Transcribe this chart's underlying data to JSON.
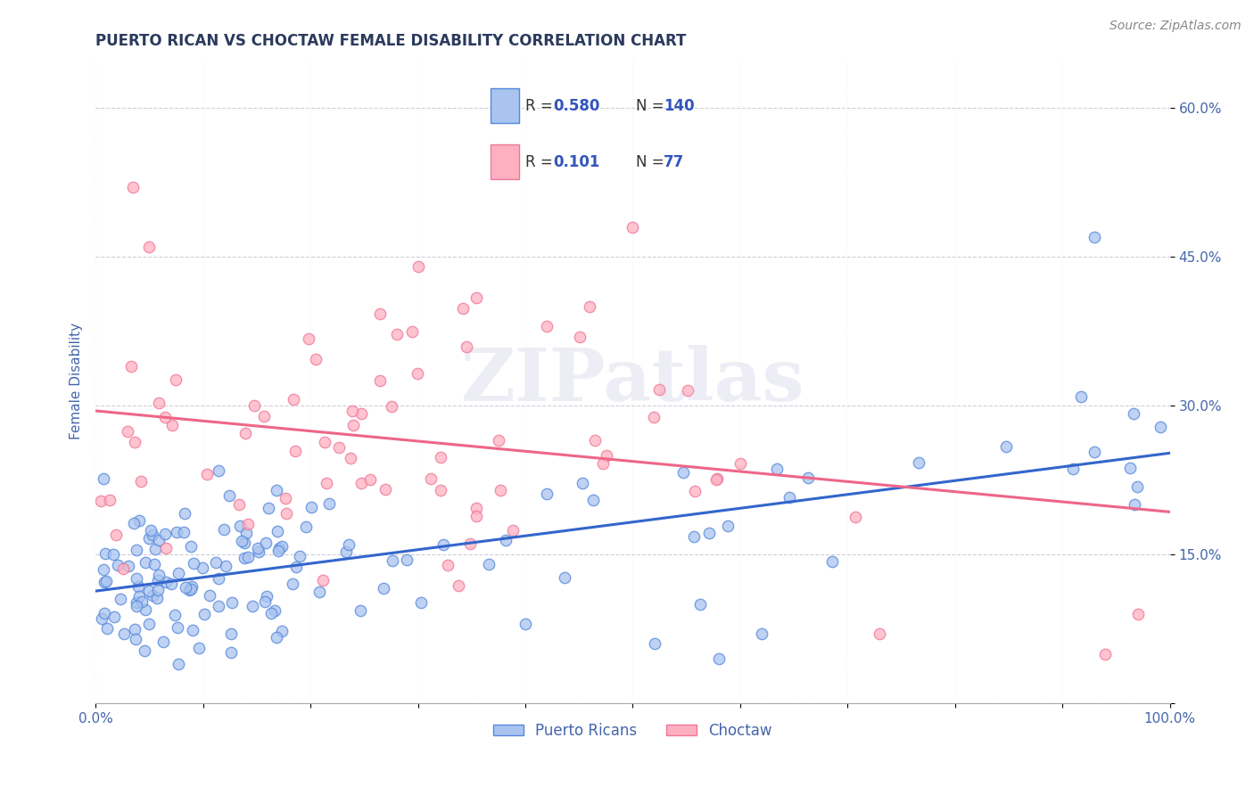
{
  "title": "PUERTO RICAN VS CHOCTAW FEMALE DISABILITY CORRELATION CHART",
  "source_text": "Source: ZipAtlas.com",
  "ylabel": "Female Disability",
  "xlim": [
    0.0,
    1.0
  ],
  "ylim": [
    0.0,
    0.65
  ],
  "xtick_labels": [
    "0.0%",
    "",
    "",
    "",
    "",
    "",
    "",
    "",
    "",
    "",
    "100.0%"
  ],
  "ytick_labels": [
    "",
    "15.0%",
    "30.0%",
    "45.0%",
    "60.0%"
  ],
  "ytick_vals": [
    0.0,
    0.15,
    0.3,
    0.45,
    0.6
  ],
  "xtick_vals": [
    0.0,
    0.1,
    0.2,
    0.3,
    0.4,
    0.5,
    0.6,
    0.7,
    0.8,
    0.9,
    1.0
  ],
  "puerto_rican_R": 0.58,
  "puerto_rican_N": 140,
  "choctaw_R": 0.101,
  "choctaw_N": 77,
  "pr_scatter_color": "#aac4f0",
  "pr_edge_color": "#5588dd",
  "ch_scatter_color": "#ffb0c0",
  "ch_edge_color": "#ee7799",
  "regression_blue": "#3366cc",
  "regression_pink": "#ee6688",
  "watermark": "ZIPatlas",
  "watermark_color": "#ddddee",
  "title_color": "#2b3a5c",
  "axis_label_color": "#4466aa",
  "tick_color": "#4466aa",
  "legend_text_color": "#3355bb",
  "legend_border_color": "#cccccc",
  "grid_color": "#bbbbcc",
  "source_color": "#888888"
}
